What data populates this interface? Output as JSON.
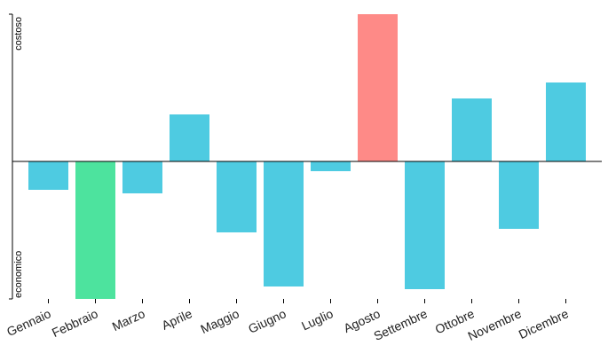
{
  "chart_data": {
    "type": "bar",
    "categories": [
      "Gennaio",
      "Febbraio",
      "Marzo",
      "Aprile",
      "Maggio",
      "Giugno",
      "Luglio",
      "Agosto",
      "Settembre",
      "Ottobre",
      "Novembre",
      "Dicembre"
    ],
    "values": [
      -32,
      -155,
      -36,
      53,
      -80,
      -141,
      -11,
      166,
      -144,
      71,
      -76,
      89
    ],
    "bar_colors": [
      "#4ecbe1",
      "#4de39e",
      "#4ecbe1",
      "#4ecbe1",
      "#4ecbe1",
      "#4ecbe1",
      "#4ecbe1",
      "#fe8a87",
      "#4ecbe1",
      "#4ecbe1",
      "#4ecbe1",
      "#4ecbe1"
    ],
    "ylim": [
      -155,
      166
    ],
    "y_axis_top_label": "costoso",
    "y_axis_bottom_label": "economico",
    "grid": false,
    "zero_line": true
  }
}
